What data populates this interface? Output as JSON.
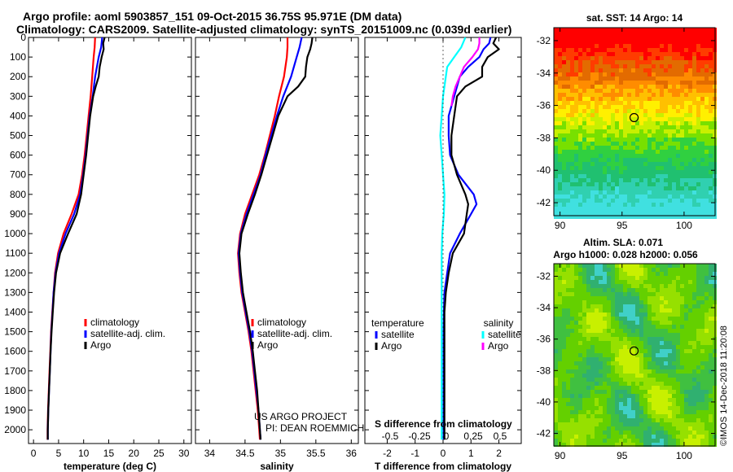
{
  "header": {
    "title_line1": "Argo profile: aoml 5903857_151 09-Oct-2015 36.75S 95.971E (DM data)",
    "title_line2": "Climatology: CARS2009. Satellite-adjusted climatology: synTS_20151009.nc (0.039d earlier)"
  },
  "colors": {
    "climatology": "#ff0000",
    "satellite": "#0000ff",
    "argo": "#000000",
    "satellite_salinity": "#00ffff",
    "argo_salinity": "#ff00ff"
  },
  "chart_data": [
    {
      "type": "line",
      "title": "",
      "xlabel": "temperature (deg C)",
      "ylabel": "",
      "xlim": [
        -1,
        31.5
      ],
      "ylim": [
        2070,
        0
      ],
      "xticks": [
        "0",
        "5",
        "10",
        "15",
        "20",
        "25",
        "30"
      ],
      "yticks": [
        "0",
        "100",
        "200",
        "300",
        "400",
        "500",
        "600",
        "700",
        "800",
        "900",
        "1000",
        "1100",
        "1200",
        "1300",
        "1400",
        "1500",
        "1600",
        "1700",
        "1800",
        "1900",
        "2000"
      ],
      "legend": [
        "climatology",
        "satellite-adj. clim.",
        "Argo"
      ],
      "series": [
        {
          "name": "climatology",
          "color": "#ff0000",
          "depth": [
            0,
            50,
            100,
            200,
            300,
            400,
            500,
            600,
            700,
            800,
            900,
            1000,
            1100,
            1200,
            1300,
            1400,
            1500,
            1600,
            1700,
            1800,
            1900,
            2000,
            2050
          ],
          "values": [
            12.3,
            12.2,
            12.0,
            11.7,
            11.4,
            11.0,
            10.6,
            10.2,
            9.7,
            9.0,
            7.6,
            6.0,
            4.9,
            4.3,
            4.0,
            3.75,
            3.5,
            3.35,
            3.2,
            3.05,
            2.9,
            2.8,
            2.8
          ]
        },
        {
          "name": "satellite-adj. clim.",
          "color": "#0000ff",
          "depth": [
            0,
            50,
            100,
            200,
            300,
            400,
            500,
            600,
            700,
            800,
            900,
            1000,
            1100,
            1200,
            1300,
            1400,
            1500,
            1600,
            1700,
            1800,
            1900,
            2000,
            2050
          ],
          "values": [
            13.7,
            13.5,
            13.0,
            12.3,
            11.8,
            11.2,
            10.8,
            10.4,
            9.9,
            9.3,
            8.1,
            6.4,
            5.1,
            4.4,
            4.0,
            3.8,
            3.55,
            3.4,
            3.25,
            3.1,
            2.95,
            2.85,
            2.85
          ]
        },
        {
          "name": "Argo",
          "color": "#000000",
          "depth": [
            0,
            30,
            60,
            100,
            150,
            200,
            250,
            300,
            400,
            500,
            600,
            700,
            800,
            900,
            1000,
            1100,
            1200,
            1300,
            1400,
            1500,
            1600,
            1700,
            1800,
            1900,
            2000,
            2050
          ],
          "values": [
            14.2,
            13.9,
            14.0,
            13.6,
            13.2,
            13.0,
            12.4,
            11.9,
            11.3,
            10.9,
            10.5,
            10.0,
            9.5,
            8.6,
            6.9,
            5.3,
            4.5,
            4.1,
            3.85,
            3.6,
            3.4,
            3.25,
            3.1,
            2.95,
            2.85,
            2.85
          ]
        }
      ]
    },
    {
      "type": "line",
      "title": "",
      "xlabel": "salinity",
      "ylabel": "",
      "xlim": [
        33.8,
        36.1
      ],
      "ylim": [
        2070,
        0
      ],
      "xticks": [
        "34",
        "34.5",
        "35",
        "35.5",
        "36"
      ],
      "legend": [
        "climatology",
        "satellite-adj. clim.",
        "Argo"
      ],
      "annotations": [
        "US ARGO PROJECT",
        "PI: DEAN ROEMMICH"
      ],
      "series": [
        {
          "name": "climatology",
          "color": "#ff0000",
          "depth": [
            0,
            50,
            100,
            200,
            300,
            400,
            500,
            600,
            700,
            800,
            900,
            1000,
            1100,
            1200,
            1300,
            1400,
            1500,
            1600,
            1700,
            1800,
            1900,
            2000,
            2050
          ],
          "values": [
            35.1,
            35.1,
            35.09,
            35.05,
            34.98,
            34.92,
            34.85,
            34.78,
            34.7,
            34.6,
            34.5,
            34.43,
            34.4,
            34.42,
            34.45,
            34.5,
            34.55,
            34.59,
            34.62,
            34.65,
            34.68,
            34.7,
            34.71
          ]
        },
        {
          "name": "satellite-adj. clim.",
          "color": "#0000ff",
          "depth": [
            0,
            50,
            100,
            200,
            300,
            400,
            500,
            600,
            700,
            800,
            900,
            1000,
            1100,
            1200,
            1300,
            1400,
            1500,
            1600,
            1700,
            1800,
            1900,
            2000,
            2050
          ],
          "values": [
            35.3,
            35.27,
            35.23,
            35.15,
            35.04,
            34.95,
            34.87,
            34.79,
            34.72,
            34.62,
            34.52,
            34.44,
            34.41,
            34.43,
            34.46,
            34.51,
            34.56,
            34.6,
            34.63,
            34.66,
            34.69,
            34.71,
            34.72
          ]
        },
        {
          "name": "Argo",
          "color": "#000000",
          "depth": [
            0,
            30,
            60,
            100,
            150,
            200,
            250,
            300,
            400,
            500,
            600,
            700,
            800,
            900,
            1000,
            1100,
            1200,
            1300,
            1400,
            1500,
            1600,
            1700,
            1800,
            1900,
            2000,
            2050
          ],
          "values": [
            35.45,
            35.44,
            35.42,
            35.38,
            35.36,
            35.35,
            35.25,
            35.1,
            34.97,
            34.89,
            34.81,
            34.73,
            34.64,
            34.54,
            34.45,
            34.42,
            34.44,
            34.47,
            34.52,
            34.57,
            34.61,
            34.64,
            34.67,
            34.69,
            34.71,
            34.72
          ]
        }
      ]
    },
    {
      "type": "line",
      "title": "",
      "xlabel": "T difference from climatology",
      "ylabel": "",
      "xlim": [
        -2.8,
        2.8
      ],
      "ylim": [
        2070,
        0
      ],
      "xticks": [
        "-2",
        "-1",
        "0",
        "1",
        "2"
      ],
      "secondary_xlabel": "S difference from climatology",
      "secondary_xticks": [
        "-0.5",
        "-0.25",
        "0",
        "0.25",
        "0.5"
      ],
      "legend_groups": {
        "temperature": [
          "satellite",
          "Argo"
        ],
        "salinity": [
          "satellite",
          "Argo"
        ]
      },
      "series": [
        {
          "name": "temperature satellite",
          "color": "#0000ff",
          "depth": [
            0,
            30,
            60,
            100,
            150,
            200,
            300,
            400,
            500,
            600,
            700,
            800,
            850,
            900,
            1000,
            1100,
            1200,
            1300,
            1400,
            1500,
            1600,
            1700,
            1800,
            1900,
            2000,
            2050
          ],
          "values": [
            1.7,
            1.65,
            1.45,
            1.3,
            0.9,
            0.6,
            0.4,
            0.2,
            0.2,
            0.25,
            0.55,
            1.1,
            1.2,
            1.0,
            0.6,
            0.25,
            0.15,
            0.05,
            0.03,
            0.02,
            0.02,
            0.02,
            0.02,
            0.02,
            0.02,
            0.02
          ]
        },
        {
          "name": "temperature Argo",
          "color": "#000000",
          "depth": [
            0,
            30,
            60,
            100,
            150,
            200,
            250,
            300,
            400,
            500,
            600,
            700,
            800,
            850,
            900,
            1000,
            1100,
            1200,
            1300,
            1400,
            1500,
            1600,
            1700,
            1800,
            1900,
            2000,
            2050
          ],
          "values": [
            1.9,
            1.8,
            2.0,
            1.6,
            1.4,
            1.4,
            0.8,
            0.5,
            0.4,
            0.3,
            0.3,
            0.5,
            0.8,
            0.9,
            0.85,
            0.75,
            0.35,
            0.2,
            0.1,
            0.05,
            0.05,
            0.05,
            0.05,
            0.05,
            0.05,
            0.05,
            0.05
          ]
        },
        {
          "name": "salinity satellite",
          "color": "#00ffff",
          "depth": [
            0,
            50,
            100,
            150,
            200,
            300,
            400,
            500,
            600,
            700,
            800,
            900,
            1000,
            1100,
            1200,
            1300,
            1400,
            1500,
            1600,
            1700,
            1800,
            1900,
            2000,
            2050
          ],
          "values": [
            0.8,
            0.65,
            0.4,
            0.15,
            0.1,
            0.0,
            -0.05,
            -0.1,
            -0.05,
            0.0,
            0.05,
            0.03,
            -0.03,
            -0.05,
            -0.05,
            -0.05,
            -0.05,
            -0.05,
            -0.05,
            -0.05,
            -0.05,
            -0.05,
            -0.05,
            -0.05
          ]
        },
        {
          "name": "salinity Argo",
          "color": "#ff00ff",
          "depth": [
            0,
            30,
            60,
            100,
            150,
            200,
            250,
            300,
            350
          ],
          "values": [
            1.3,
            1.3,
            1.25,
            1.05,
            0.75,
            0.6,
            0.45,
            0.35,
            0.3
          ]
        }
      ]
    },
    {
      "type": "heatmap",
      "title": "sat. SST: 14 Argo: 14",
      "xlim": [
        89.5,
        102.5
      ],
      "ylim": [
        -42.8,
        -31.2
      ],
      "xticks": [
        "90",
        "95",
        "100"
      ],
      "yticks": [
        "-32",
        "-34",
        "-36",
        "-38",
        "-40",
        "-42"
      ],
      "marker": {
        "lon": 95.971,
        "lat": -36.75
      }
    },
    {
      "type": "heatmap",
      "title": "Altim. SLA: 0.071",
      "subtitle": "Argo h1000: 0.028 h2000: 0.056",
      "xlim": [
        89.5,
        102.5
      ],
      "ylim": [
        -42.8,
        -31.2
      ],
      "xticks": [
        "90",
        "95",
        "100"
      ],
      "yticks": [
        "-32",
        "-34",
        "-36",
        "-38",
        "-40",
        "-42"
      ],
      "marker": {
        "lon": 95.971,
        "lat": -36.75
      }
    }
  ],
  "credit": "©IMOS 14-Dec-2018 11:20:08"
}
